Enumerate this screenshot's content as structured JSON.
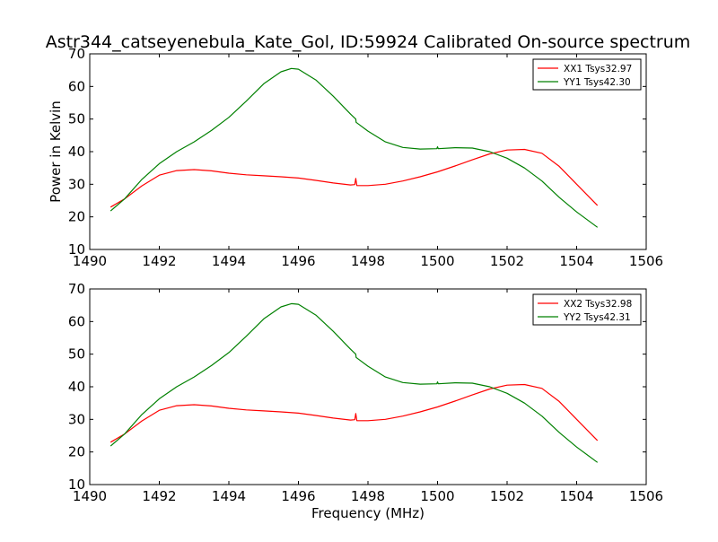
{
  "figure": {
    "title": "Astr344_catseyenebula_Kate_Gol, ID:59924 Calibrated On-source spectrum",
    "xlabel": "Frequency (MHz)",
    "ylabel": "Power in Kelvin"
  },
  "chart_data": [
    {
      "type": "line",
      "xlim": [
        1490,
        1506
      ],
      "ylim": [
        10,
        70
      ],
      "xticks": [
        1490,
        1492,
        1494,
        1496,
        1498,
        1500,
        1502,
        1504,
        1506
      ],
      "yticks": [
        10,
        20,
        30,
        40,
        50,
        60,
        70
      ],
      "grid": false,
      "legend": "top-right",
      "series": [
        {
          "name": "XX1 Tsys32.97",
          "color": "#ff0000",
          "x": [
            1490.6,
            1491.0,
            1491.5,
            1492.0,
            1492.5,
            1493.0,
            1493.5,
            1494.0,
            1494.5,
            1495.0,
            1495.5,
            1496.0,
            1496.5,
            1497.0,
            1497.5,
            1497.62,
            1497.65,
            1497.68,
            1498.0,
            1498.5,
            1499.0,
            1499.5,
            1500.0,
            1500.5,
            1501.0,
            1501.5,
            1502.0,
            1502.5,
            1503.0,
            1503.5,
            1504.0,
            1504.6
          ],
          "y": [
            23.0,
            25.5,
            29.5,
            32.8,
            34.2,
            34.5,
            34.1,
            33.4,
            32.9,
            32.6,
            32.3,
            31.9,
            31.2,
            30.4,
            29.8,
            29.9,
            31.8,
            29.6,
            29.6,
            30.0,
            31.0,
            32.3,
            33.8,
            35.6,
            37.5,
            39.3,
            40.5,
            40.7,
            39.5,
            35.5,
            30.0,
            23.5
          ]
        },
        {
          "name": "YY1 Tsys42.30",
          "color": "#008000",
          "x": [
            1490.6,
            1491.0,
            1491.5,
            1492.0,
            1492.5,
            1493.0,
            1493.5,
            1494.0,
            1494.5,
            1495.0,
            1495.5,
            1495.8,
            1496.0,
            1496.5,
            1497.0,
            1497.5,
            1497.65,
            1497.66,
            1498.0,
            1498.5,
            1499.0,
            1499.5,
            1499.98,
            1500.0,
            1500.02,
            1500.5,
            1501.0,
            1501.5,
            1502.0,
            1502.5,
            1503.0,
            1503.5,
            1504.0,
            1504.6
          ],
          "y": [
            21.8,
            25.5,
            31.5,
            36.3,
            40.0,
            43.0,
            46.5,
            50.5,
            55.5,
            60.8,
            64.5,
            65.5,
            65.3,
            62.0,
            57.0,
            51.5,
            50.0,
            49.0,
            46.3,
            43.0,
            41.3,
            40.8,
            40.9,
            41.5,
            40.9,
            41.2,
            41.1,
            40.0,
            38.0,
            35.0,
            31.0,
            26.0,
            21.5,
            16.8
          ]
        }
      ]
    },
    {
      "type": "line",
      "xlim": [
        1490,
        1506
      ],
      "ylim": [
        10,
        70
      ],
      "xticks": [
        1490,
        1492,
        1494,
        1496,
        1498,
        1500,
        1502,
        1504,
        1506
      ],
      "yticks": [
        10,
        20,
        30,
        40,
        50,
        60,
        70
      ],
      "grid": false,
      "legend": "top-right",
      "series": [
        {
          "name": "XX2 Tsys32.98",
          "color": "#ff0000",
          "x": [
            1490.6,
            1491.0,
            1491.5,
            1492.0,
            1492.5,
            1493.0,
            1493.5,
            1494.0,
            1494.5,
            1495.0,
            1495.5,
            1496.0,
            1496.5,
            1497.0,
            1497.5,
            1497.62,
            1497.65,
            1497.68,
            1498.0,
            1498.5,
            1499.0,
            1499.5,
            1500.0,
            1500.5,
            1501.0,
            1501.5,
            1502.0,
            1502.5,
            1503.0,
            1503.5,
            1504.0,
            1504.6
          ],
          "y": [
            23.0,
            25.5,
            29.5,
            32.8,
            34.2,
            34.5,
            34.1,
            33.4,
            32.9,
            32.6,
            32.3,
            31.9,
            31.2,
            30.4,
            29.8,
            29.9,
            31.8,
            29.6,
            29.6,
            30.0,
            31.0,
            32.3,
            33.8,
            35.6,
            37.5,
            39.3,
            40.5,
            40.7,
            39.5,
            35.5,
            30.0,
            23.5
          ]
        },
        {
          "name": "YY2 Tsys42.31",
          "color": "#008000",
          "x": [
            1490.6,
            1491.0,
            1491.5,
            1492.0,
            1492.5,
            1493.0,
            1493.5,
            1494.0,
            1494.5,
            1495.0,
            1495.5,
            1495.8,
            1496.0,
            1496.5,
            1497.0,
            1497.5,
            1497.65,
            1497.66,
            1498.0,
            1498.5,
            1499.0,
            1499.5,
            1499.98,
            1500.0,
            1500.02,
            1500.5,
            1501.0,
            1501.5,
            1502.0,
            1502.5,
            1503.0,
            1503.5,
            1504.0,
            1504.6
          ],
          "y": [
            21.8,
            25.5,
            31.5,
            36.3,
            40.0,
            43.0,
            46.5,
            50.5,
            55.5,
            60.8,
            64.5,
            65.5,
            65.3,
            62.0,
            57.0,
            51.5,
            50.0,
            49.0,
            46.3,
            43.0,
            41.3,
            40.8,
            40.9,
            41.5,
            40.9,
            41.2,
            41.1,
            40.0,
            38.0,
            35.0,
            31.0,
            26.0,
            21.5,
            16.8
          ]
        }
      ]
    }
  ]
}
